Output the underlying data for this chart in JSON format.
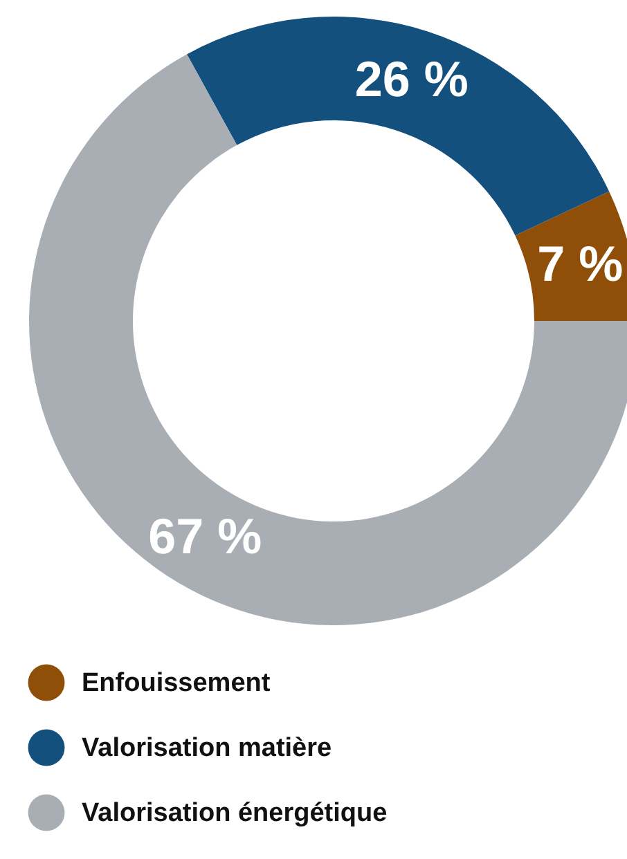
{
  "chart_data": {
    "type": "donut",
    "categories": [
      "Enfouissement",
      "Valorisation matière",
      "Valorisation énergétique"
    ],
    "values": [
      7,
      26,
      67
    ],
    "colors": [
      "#8f4f08",
      "#14507e",
      "#a8aeb4"
    ],
    "value_labels": [
      "7 %",
      "26 %",
      "67 %"
    ],
    "legend": "bottom left"
  }
}
